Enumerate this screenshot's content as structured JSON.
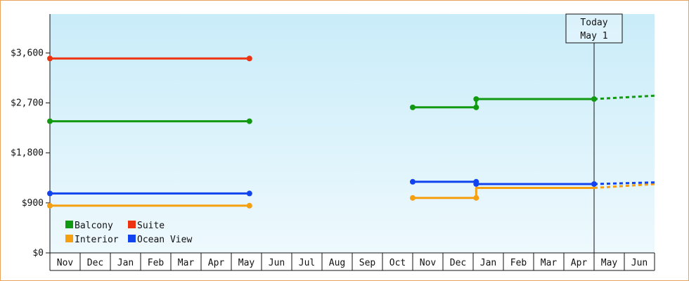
{
  "chart_data": {
    "type": "line",
    "title": "",
    "xlabel": "",
    "ylabel": "",
    "ylim": [
      0,
      4300
    ],
    "y_ticks": [
      0,
      900,
      1800,
      2700,
      3600
    ],
    "y_tick_labels": [
      "$0",
      "$900",
      "$1,800",
      "$2,700",
      "$3,600"
    ],
    "x_labels": [
      "Nov",
      "Dec",
      "Jan",
      "Feb",
      "Mar",
      "Apr",
      "May",
      "Jun",
      "Jul",
      "Aug",
      "Sep",
      "Oct",
      "Nov",
      "Dec",
      "Jan",
      "Feb",
      "Mar",
      "Apr",
      "May",
      "Jun"
    ],
    "x_range": [
      0,
      20
    ],
    "today": {
      "x": 18,
      "label_line1": "Today",
      "label_line2": "May 1"
    },
    "legend": {
      "placement": "bottom-left"
    },
    "series": [
      {
        "name": "Balcony",
        "color": "#119911",
        "segments": [
          {
            "style": "solid",
            "points": [
              [
                0,
                2370
              ],
              [
                6.6,
                2370
              ]
            ]
          },
          {
            "style": "solid",
            "points": [
              [
                12,
                2620
              ],
              [
                14.1,
                2620
              ],
              [
                14.1,
                2770
              ],
              [
                18,
                2770
              ]
            ]
          },
          {
            "style": "dotted",
            "points": [
              [
                18,
                2770
              ],
              [
                20,
                2830
              ]
            ]
          }
        ],
        "markers": [
          [
            0,
            2370
          ],
          [
            6.6,
            2370
          ],
          [
            12,
            2620
          ],
          [
            14.1,
            2620
          ],
          [
            14.1,
            2770
          ],
          [
            18,
            2770
          ]
        ]
      },
      {
        "name": "Suite",
        "color": "#ee3311",
        "segments": [
          {
            "style": "solid",
            "points": [
              [
                0,
                3500
              ],
              [
                6.6,
                3500
              ]
            ]
          }
        ],
        "markers": [
          [
            0,
            3500
          ],
          [
            6.6,
            3500
          ]
        ]
      },
      {
        "name": "Interior",
        "color": "#f5a011",
        "segments": [
          {
            "style": "solid",
            "points": [
              [
                0,
                850
              ],
              [
                6.6,
                850
              ]
            ]
          },
          {
            "style": "solid",
            "points": [
              [
                12,
                990
              ],
              [
                14.1,
                990
              ],
              [
                14.1,
                1170
              ],
              [
                18,
                1170
              ]
            ]
          },
          {
            "style": "dotted",
            "points": [
              [
                18,
                1170
              ],
              [
                20,
                1240
              ]
            ]
          }
        ],
        "markers": [
          [
            0,
            850
          ],
          [
            6.6,
            850
          ],
          [
            12,
            990
          ],
          [
            14.1,
            990
          ]
        ]
      },
      {
        "name": "Ocean View",
        "color": "#1144ee",
        "segments": [
          {
            "style": "solid",
            "points": [
              [
                0,
                1070
              ],
              [
                6.6,
                1070
              ]
            ]
          },
          {
            "style": "solid",
            "points": [
              [
                12,
                1280
              ],
              [
                14.1,
                1280
              ],
              [
                14.1,
                1240
              ],
              [
                18,
                1240
              ]
            ]
          },
          {
            "style": "dotted",
            "points": [
              [
                18,
                1240
              ],
              [
                20,
                1270
              ]
            ]
          }
        ],
        "markers": [
          [
            0,
            1070
          ],
          [
            6.6,
            1070
          ],
          [
            12,
            1280
          ],
          [
            14.1,
            1280
          ],
          [
            14.1,
            1240
          ],
          [
            18,
            1240
          ]
        ]
      }
    ]
  }
}
